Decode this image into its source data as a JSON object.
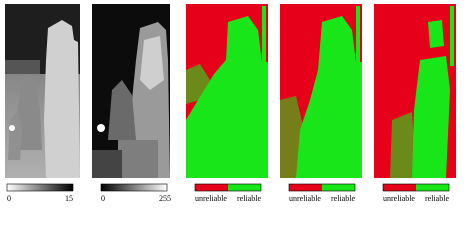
{
  "panels": [
    {
      "colorbar": {
        "left": 0,
        "right": 15
      }
    },
    {
      "colorbar": {
        "left": 0,
        "right": 255
      }
    },
    {
      "colorbar": {
        "left": "unreliable",
        "right": "reliable"
      }
    },
    {
      "colorbar": {
        "left": "unreliable",
        "right": "reliable"
      }
    },
    {
      "colorbar": {
        "left": "unreliable",
        "right": "reliable"
      }
    }
  ]
}
